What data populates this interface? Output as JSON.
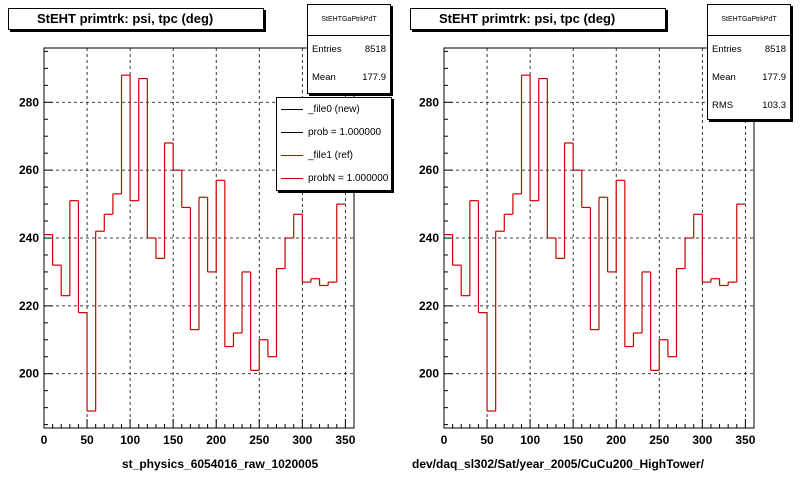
{
  "chart_data": [
    {
      "type": "histogram",
      "title": "StEHT primtrk: psi, tpc (deg)",
      "xlabel": "st_physics_6054016_raw_1020005",
      "ylabel": "",
      "xlim": [
        0,
        360
      ],
      "ylim": [
        184,
        296
      ],
      "xticks": [
        0,
        50,
        100,
        150,
        200,
        250,
        300,
        350
      ],
      "yticks": [
        200,
        220,
        240,
        260,
        280
      ],
      "grid": true,
      "bin_width": 10,
      "bin_edges_start": 0,
      "values": [
        241,
        232,
        223,
        251,
        218,
        189,
        242,
        247,
        253,
        288,
        251,
        287,
        240,
        234,
        268,
        260,
        249,
        213,
        252,
        230,
        257,
        208,
        212,
        230,
        201,
        210,
        205,
        231,
        240,
        247,
        227,
        228,
        226,
        227,
        250
      ],
      "line_color": "#cc0000",
      "stats": {
        "name": "StEHTGaPtrkPdT",
        "rows": [
          {
            "label": "Entries",
            "value": "8518"
          },
          {
            "label": "Mean",
            "value": "177.9"
          }
        ]
      },
      "legend": {
        "position": "top-right",
        "entries": [
          {
            "label": "_file0 (new)",
            "color": "#000000"
          },
          {
            "label": "prob = 1.000000",
            "color": "#000000"
          },
          {
            "label": "_file1 (ref)",
            "color": "#cc0000"
          },
          {
            "label": "probN = 1.000000",
            "color": "#cc0000"
          }
        ]
      }
    },
    {
      "type": "histogram",
      "title": "StEHT primtrk: psi, tpc (deg)",
      "xlabel": "dev/daq_sl302/Sat/year_2005/CuCu200_HighTower/",
      "ylabel": "",
      "xlim": [
        0,
        360
      ],
      "ylim": [
        184,
        296
      ],
      "xticks": [
        0,
        50,
        100,
        150,
        200,
        250,
        300,
        350
      ],
      "yticks": [
        200,
        220,
        240,
        260,
        280
      ],
      "grid": true,
      "bin_width": 10,
      "bin_edges_start": 0,
      "values": [
        241,
        232,
        223,
        251,
        218,
        189,
        242,
        247,
        253,
        288,
        251,
        287,
        240,
        234,
        268,
        260,
        249,
        213,
        252,
        230,
        257,
        208,
        212,
        230,
        201,
        210,
        205,
        231,
        240,
        247,
        227,
        228,
        226,
        227,
        250
      ],
      "line_color": "#cc0000",
      "stats": {
        "name": "StEHTGaPtrkPdT",
        "rows": [
          {
            "label": "Entries",
            "value": "8518"
          },
          {
            "label": "Mean",
            "value": "177.9"
          },
          {
            "label": "RMS",
            "value": "103.3"
          }
        ]
      }
    }
  ]
}
